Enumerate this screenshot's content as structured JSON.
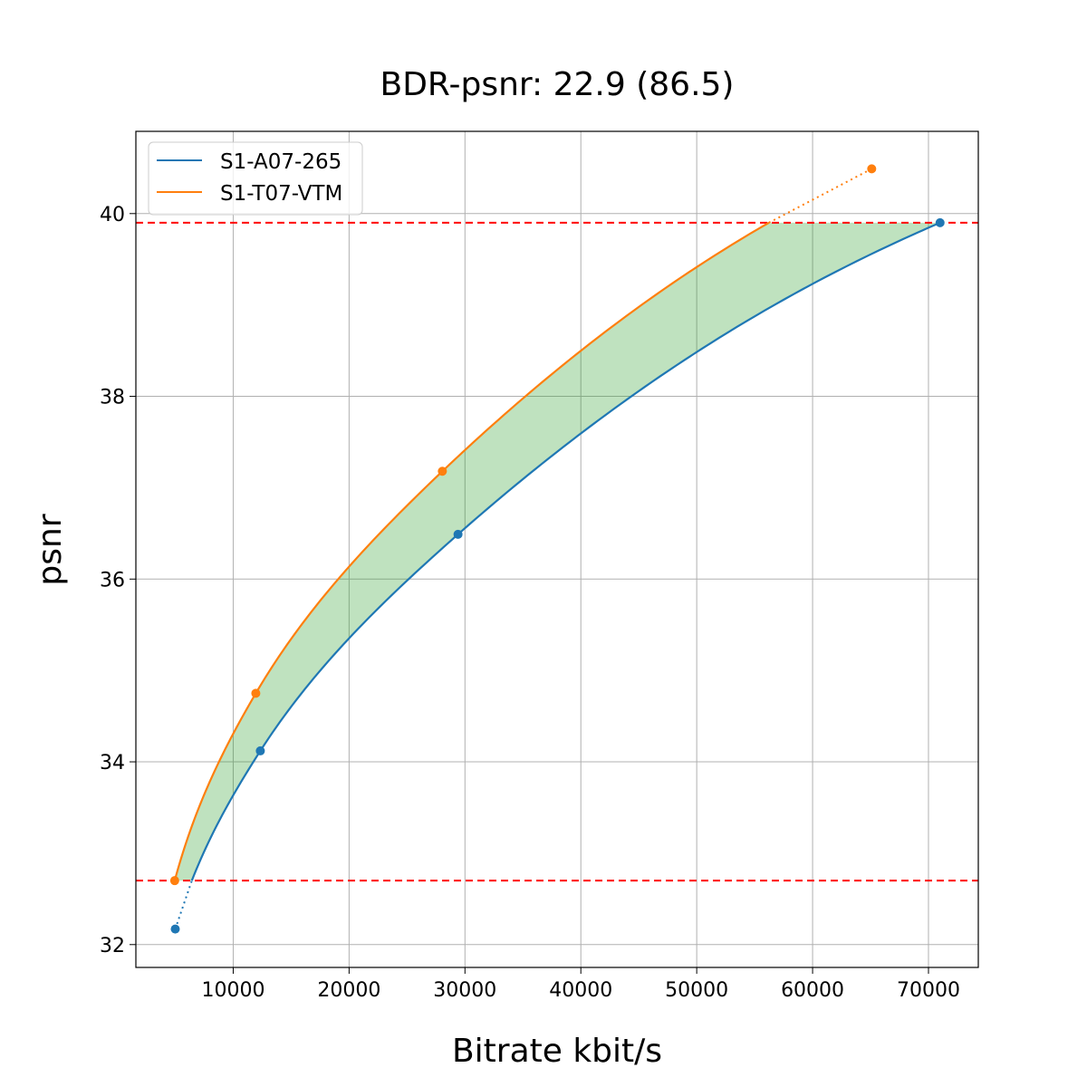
{
  "chart_data": {
    "type": "line",
    "title": "BDR-psnr: 22.9 (86.5)",
    "xlabel": "Bitrate kbit/s",
    "ylabel": "psnr",
    "xlim": [
      1600,
      74300
    ],
    "ylim": [
      31.75,
      40.9
    ],
    "xticks": [
      10000,
      20000,
      30000,
      40000,
      50000,
      60000,
      70000
    ],
    "yticks": [
      32,
      34,
      36,
      38,
      40
    ],
    "grid": true,
    "legend_position": "top-left",
    "series": [
      {
        "name": "S1-A07-265",
        "color": "#1f77b4",
        "x": [
          5000,
          12340,
          29400,
          71000
        ],
        "y": [
          32.17,
          34.12,
          36.49,
          39.9
        ]
      },
      {
        "name": "S1-T07-VTM",
        "color": "#ff7f0e",
        "x": [
          4950,
          11950,
          28050,
          65100
        ],
        "y": [
          32.7,
          34.75,
          37.18,
          40.49
        ]
      }
    ],
    "hlines": [
      {
        "y": 39.9,
        "color": "#ff0000",
        "style": "dashed"
      },
      {
        "y": 32.7,
        "color": "#ff0000",
        "style": "dashed"
      }
    ],
    "fill": {
      "between": [
        32.7,
        39.9
      ],
      "color": "#2ca02c",
      "alpha": 0.3
    }
  }
}
